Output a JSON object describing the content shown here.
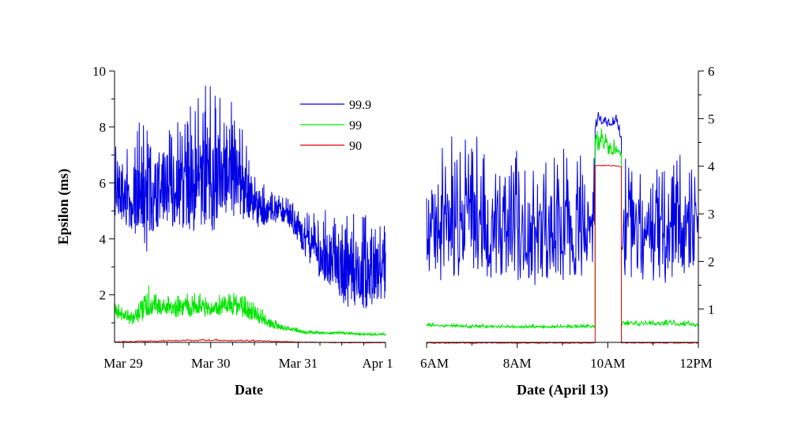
{
  "chart_data": [
    {
      "type": "line",
      "xlabel": "Date",
      "ylabel": "Epsilon (ms)",
      "x_tick_labels": [
        "Mar 29",
        "Mar 30",
        "Mar 31",
        "Apr 1"
      ],
      "x_range_days": [
        -0.1,
        3.0
      ],
      "ylim": [
        0.3,
        10
      ],
      "y_ticks": [
        2,
        4,
        6,
        8,
        10
      ],
      "y_axis_side": "left",
      "grid": false,
      "legend": {
        "placement": "top-right",
        "entries": [
          "99.9",
          "99",
          "90"
        ]
      },
      "series": [
        {
          "name": "99.9",
          "color": "#0000e6",
          "x": [
            -0.1,
            0.1,
            0.25,
            0.4,
            0.6,
            0.8,
            1.0,
            1.2,
            1.35,
            1.5,
            1.7,
            1.9,
            2.1,
            2.3,
            2.5,
            2.7,
            2.9,
            3.0
          ],
          "low": [
            4.6,
            4.3,
            2.5,
            4.4,
            4.2,
            4.0,
            4.2,
            4.6,
            4.5,
            4.3,
            4.6,
            4.4,
            3.2,
            2.4,
            1.6,
            1.4,
            1.5,
            1.6
          ],
          "high": [
            8.2,
            7.2,
            9.8,
            8.5,
            8.5,
            9.5,
            9.8,
            9.5,
            8.8,
            6.5,
            5.8,
            5.5,
            5.2,
            5.2,
            5.1,
            5.1,
            5.1,
            5.1
          ]
        },
        {
          "name": "99",
          "color": "#00e600",
          "x": [
            -0.1,
            0.1,
            0.25,
            0.4,
            0.6,
            0.8,
            1.0,
            1.2,
            1.35,
            1.5,
            1.7,
            1.9,
            2.1,
            2.3,
            2.5,
            2.7,
            2.9,
            3.0
          ],
          "low": [
            1.2,
            0.9,
            1.1,
            1.3,
            1.2,
            1.2,
            1.2,
            1.3,
            1.2,
            1.0,
            0.8,
            0.7,
            0.6,
            0.6,
            0.6,
            0.55,
            0.55,
            0.55
          ],
          "high": [
            1.8,
            1.5,
            2.5,
            2.0,
            2.0,
            2.2,
            2.0,
            2.1,
            2.2,
            1.8,
            1.2,
            0.9,
            0.75,
            0.7,
            0.7,
            0.65,
            0.65,
            0.65
          ]
        },
        {
          "name": "90",
          "color": "#e60000",
          "x": [
            -0.1,
            0.5,
            1.0,
            1.5,
            2.0,
            2.5,
            3.0
          ],
          "low": [
            0.3,
            0.33,
            0.35,
            0.33,
            0.3,
            0.28,
            0.28
          ],
          "high": [
            0.35,
            0.4,
            0.42,
            0.4,
            0.33,
            0.3,
            0.3
          ]
        }
      ]
    },
    {
      "type": "line",
      "xlabel": "Date (April 13)",
      "x_tick_labels": [
        "6AM",
        "8AM",
        "10AM",
        "12PM"
      ],
      "x_tick_hours": [
        6,
        8,
        10,
        12
      ],
      "x_range_hours": [
        6,
        12
      ],
      "ylim": [
        0.3,
        6
      ],
      "y_ticks": [
        1,
        2,
        3,
        4,
        5,
        6
      ],
      "y_axis_side": "right",
      "grid": false,
      "series": [
        {
          "name": "99.9",
          "color": "#0000e6",
          "segments": [
            {
              "x": [
                6.0,
                6.5,
                7.0,
                7.5,
                8.0,
                8.5,
                9.0,
                9.5,
                9.72
              ],
              "low": [
                1.5,
                1.4,
                1.5,
                1.5,
                1.4,
                1.5,
                1.4,
                1.5,
                1.6
              ],
              "high": [
                4.0,
                5.0,
                4.8,
                4.6,
                4.8,
                4.7,
                4.8,
                4.6,
                4.5
              ]
            },
            {
              "x": [
                9.72,
                9.8,
                10.0,
                10.2,
                10.3
              ],
              "low": [
                4.6,
                4.9,
                4.8,
                4.9,
                4.5
              ],
              "high": [
                5.0,
                5.2,
                5.2,
                5.1,
                4.8
              ]
            },
            {
              "x": [
                10.3,
                10.5,
                11.0,
                11.5,
                12.0
              ],
              "low": [
                1.6,
                1.5,
                1.4,
                1.5,
                2.0
              ],
              "high": [
                4.4,
                4.7,
                4.6,
                4.4,
                4.0
              ]
            }
          ]
        },
        {
          "name": "99",
          "color": "#00e600",
          "segments": [
            {
              "x": [
                6.0,
                7.0,
                8.0,
                9.0,
                9.72
              ],
              "low": [
                0.63,
                0.6,
                0.6,
                0.6,
                0.6
              ],
              "high": [
                0.72,
                0.68,
                0.68,
                0.68,
                0.7
              ]
            },
            {
              "x": [
                9.72,
                9.8,
                10.0,
                10.2,
                10.3
              ],
              "low": [
                4.2,
                4.3,
                4.2,
                4.2,
                4.2
              ],
              "high": [
                4.8,
                4.9,
                4.8,
                4.5,
                4.4
              ]
            },
            {
              "x": [
                10.3,
                11.0,
                11.5,
                12.0
              ],
              "low": [
                0.65,
                0.65,
                0.65,
                0.62
              ],
              "high": [
                0.8,
                0.78,
                0.8,
                0.75
              ]
            }
          ]
        },
        {
          "name": "90",
          "color": "#e60000",
          "segments": [
            {
              "x": [
                6.0,
                8.0,
                9.72
              ],
              "low": [
                0.28,
                0.28,
                0.28
              ],
              "high": [
                0.3,
                0.3,
                0.3
              ]
            },
            {
              "x": [
                9.72,
                10.0,
                10.3
              ],
              "low": [
                4.0,
                4.0,
                3.98
              ],
              "high": [
                4.02,
                4.05,
                4.0
              ]
            },
            {
              "x": [
                10.3,
                11.0,
                12.0
              ],
              "low": [
                0.28,
                0.28,
                0.28
              ],
              "high": [
                0.3,
                0.3,
                0.3
              ]
            }
          ]
        }
      ]
    }
  ]
}
